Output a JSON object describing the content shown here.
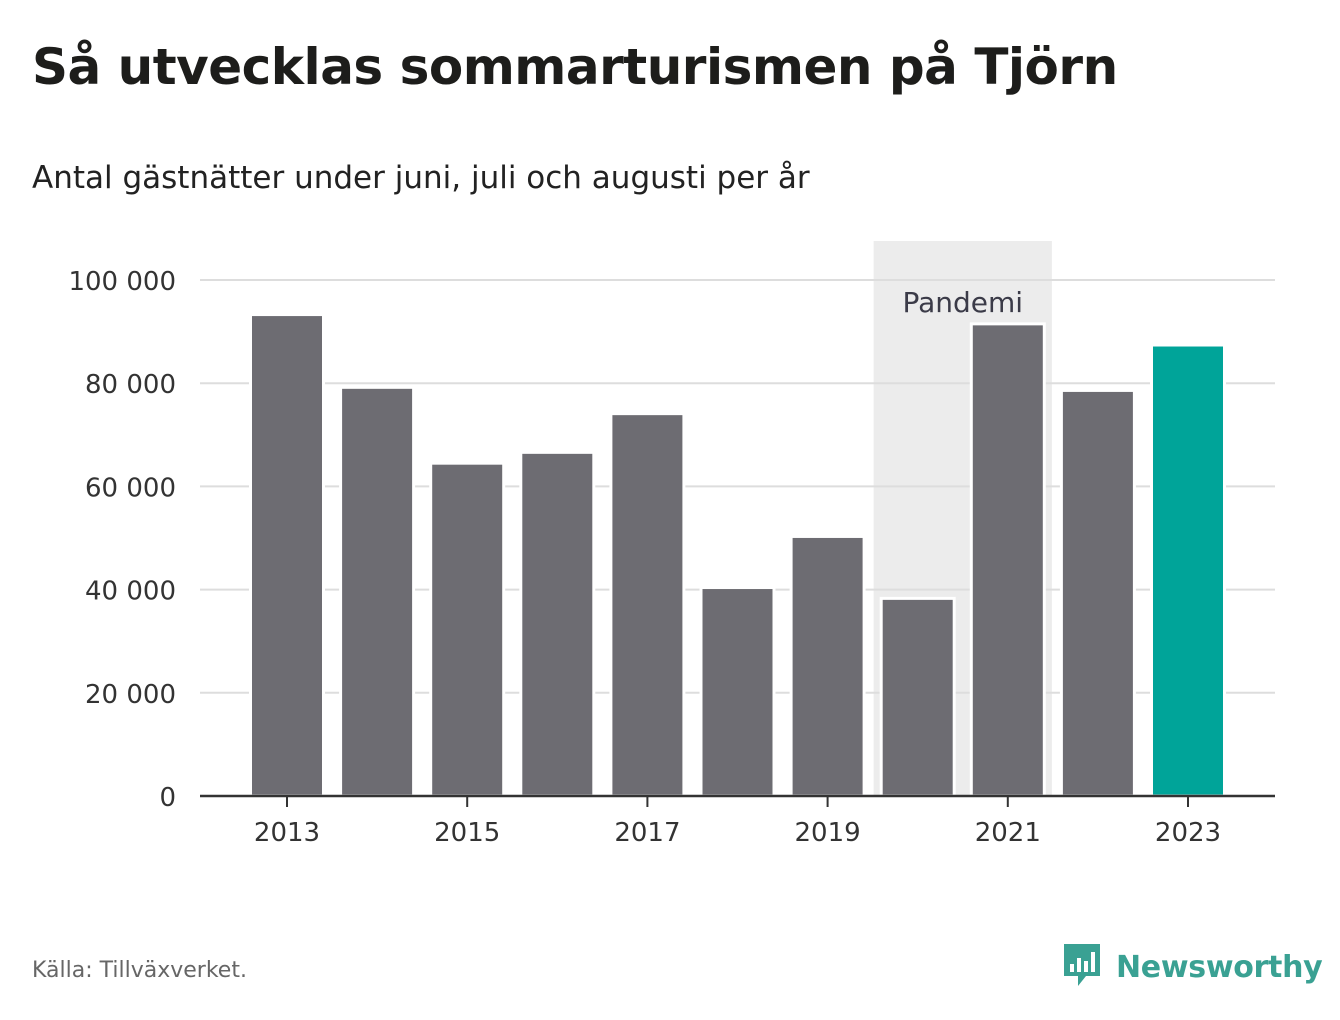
{
  "title": "Så utvecklas sommarturismen på Tjörn",
  "subtitle": "Antal gästnätter under juni, juli och augusti per år",
  "source": "Källa: Tillväxverket.",
  "brand": "Newsworthy",
  "colors": {
    "bar": "#6d6c72",
    "highlight": "#00a499",
    "band": "#ececec",
    "grid": "#dddddd",
    "axis": "#333333",
    "brand": "#3aa193"
  },
  "chart_data": {
    "type": "bar",
    "categories": [
      "2013",
      "2014",
      "2015",
      "2016",
      "2017",
      "2018",
      "2019",
      "2020",
      "2021",
      "2022",
      "2023"
    ],
    "values": [
      93300,
      79200,
      64500,
      66600,
      74100,
      40400,
      50300,
      38300,
      91500,
      78600,
      87400
    ],
    "highlight_category": "2023",
    "ylim": [
      0,
      100000
    ],
    "yticks": [
      0,
      20000,
      40000,
      60000,
      80000,
      100000
    ],
    "ytick_labels": [
      "0",
      "20 000",
      "40 000",
      "60 000",
      "80 000",
      "100 000"
    ],
    "xtick_labels": [
      "2013",
      "2015",
      "2017",
      "2019",
      "2021",
      "2023"
    ],
    "annotation": {
      "label": "Pandemi",
      "from": "2020",
      "to": "2021"
    },
    "grid": true,
    "legend": "none"
  }
}
